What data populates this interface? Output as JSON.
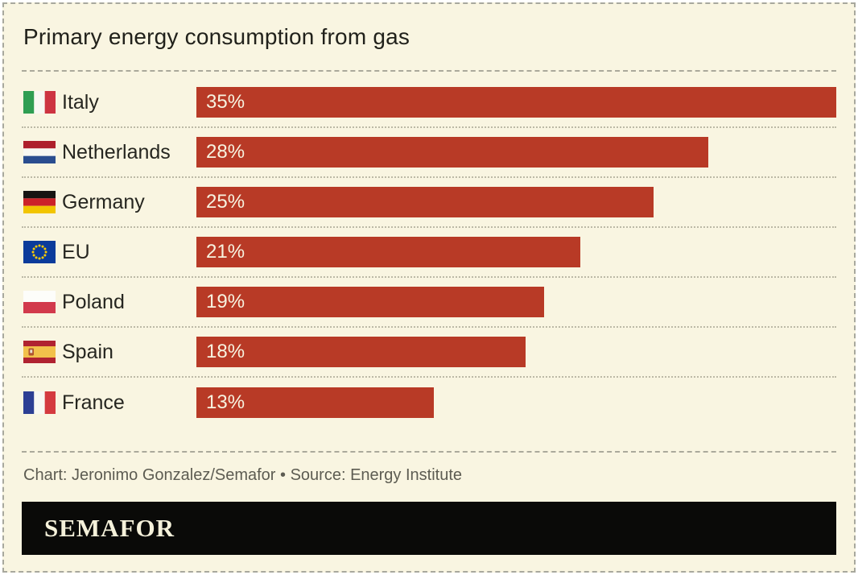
{
  "title": "Primary energy consumption from gas",
  "chart_data": {
    "type": "bar",
    "orientation": "horizontal",
    "title": "Primary energy consumption from gas",
    "categories": [
      "Italy",
      "Netherlands",
      "Germany",
      "EU",
      "Poland",
      "Spain",
      "France"
    ],
    "values": [
      35,
      28,
      25,
      21,
      19,
      18,
      13
    ],
    "value_labels": [
      "35%",
      "28%",
      "25%",
      "21%",
      "19%",
      "18%",
      "13%"
    ],
    "xlim": [
      0,
      35
    ],
    "grid": false,
    "legend": false,
    "bar_color": "#b83a26",
    "value_label_color": "#f7f3e0"
  },
  "flag_icons": [
    "italy-flag-icon",
    "netherlands-flag-icon",
    "germany-flag-icon",
    "eu-flag-icon",
    "poland-flag-icon",
    "spain-flag-icon",
    "france-flag-icon"
  ],
  "footer": {
    "credit": "Chart: Jeronimo Gonzalez/Semafor • Source: Energy Institute"
  },
  "brand": {
    "wordmark": "SEMAFOR"
  },
  "colors": {
    "card_background": "#f9f5e1",
    "bar": "#b83a26",
    "title_text": "#21211b",
    "credit_text": "#5d5c52",
    "banner_background": "#0a0a08",
    "banner_text": "#f5f1da",
    "separator": "#aba99b"
  }
}
